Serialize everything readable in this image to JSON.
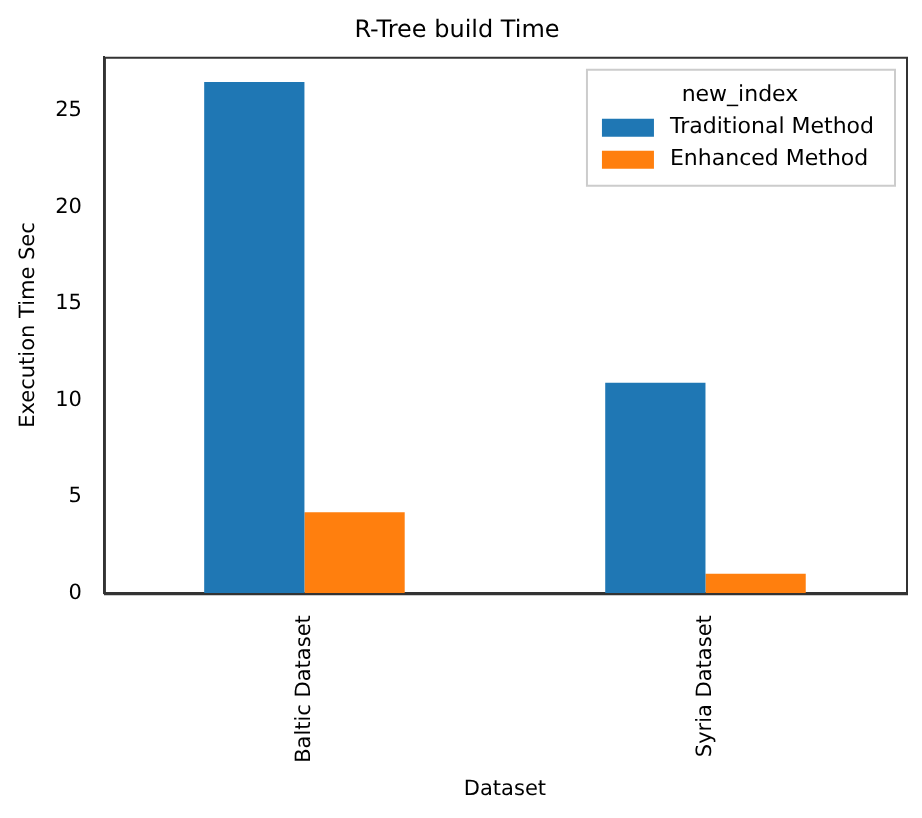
{
  "chart_data": {
    "type": "bar",
    "title": "R-Tree build Time",
    "xlabel": "Dataset",
    "ylabel": "Execution Time Sec",
    "legend_title": "new_index",
    "categories": [
      "Baltic Dataset",
      "Syria Dataset"
    ],
    "series": [
      {
        "name": "Traditional Method",
        "color": "#1f77b4",
        "values": [
          26.5,
          10.9
        ]
      },
      {
        "name": "Enhanced Method",
        "color": "#ff7f0e",
        "values": [
          4.2,
          1.0
        ]
      }
    ],
    "ylim": [
      0,
      27.8
    ],
    "yticks": [
      0,
      5,
      10,
      15,
      20,
      25
    ],
    "grid": false,
    "legend": "top right"
  }
}
